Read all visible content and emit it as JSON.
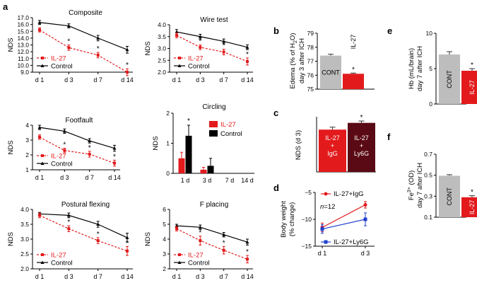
{
  "colors": {
    "red": "#e31a1c",
    "black": "#000000",
    "blue": "#1f3fcf",
    "gray": "#bdbdbd",
    "darkred": "#5a0a14"
  },
  "chart_data": [
    {
      "panel": "a",
      "type": "line",
      "title": "Composite",
      "ylabel": "NDS",
      "categories": [
        "d 1",
        "d 3",
        "d 7",
        "d 14"
      ],
      "ylim": [
        9,
        17
      ],
      "yticks": [
        "9.0",
        "10.0",
        "11.0",
        "12.0",
        "13.0",
        "14.0",
        "15.0",
        "16.0",
        "17.0"
      ],
      "legend": [
        "IL-27",
        "Control"
      ],
      "legend_pos": "bottom-left",
      "series": [
        {
          "name": "Control",
          "values": [
            16.3,
            15.8,
            14.0,
            12.3
          ],
          "err": [
            0.3,
            0.3,
            0.4,
            0.5
          ],
          "stars": []
        },
        {
          "name": "IL-27",
          "values": [
            15.2,
            12.6,
            11.5,
            9.0
          ],
          "err": [
            0.3,
            0.4,
            0.4,
            0.5
          ],
          "stars": [
            "",
            "*",
            "*",
            "*"
          ]
        }
      ]
    },
    {
      "type": "line",
      "title": "Wire test",
      "ylabel": "NDS",
      "categories": [
        "d 1",
        "d 3",
        "d 7",
        "d 14"
      ],
      "ylim": [
        2,
        4
      ],
      "yticks": [
        "2.0",
        "2.5",
        "3.0",
        "3.5",
        "4.0"
      ],
      "legend": [
        "IL-27",
        "Control"
      ],
      "legend_pos": "bottom-left",
      "series": [
        {
          "name": "Control",
          "values": [
            3.7,
            3.5,
            3.3,
            3.05
          ],
          "err": [
            0.1,
            0.1,
            0.1,
            0.1
          ],
          "stars": []
        },
        {
          "name": "IL-27",
          "values": [
            3.55,
            3.05,
            2.85,
            2.45
          ],
          "err": [
            0.1,
            0.1,
            0.12,
            0.15
          ],
          "stars": [
            "",
            "*",
            "*",
            "*"
          ]
        }
      ]
    },
    {
      "type": "line",
      "title": "Footfault",
      "ylabel": "NDS",
      "categories": [
        "d 1",
        "d 3",
        "d 7",
        "d 14"
      ],
      "ylim": [
        1,
        4
      ],
      "yticks": [
        "1",
        "2",
        "3",
        "4"
      ],
      "legend": [
        "IL-27",
        "Control"
      ],
      "legend_pos": "bottom-left",
      "series": [
        {
          "name": "Control",
          "values": [
            3.85,
            3.6,
            2.95,
            2.45
          ],
          "err": [
            0.15,
            0.15,
            0.15,
            0.2
          ],
          "stars": []
        },
        {
          "name": "IL-27",
          "values": [
            3.2,
            2.3,
            2.05,
            1.45
          ],
          "err": [
            0.15,
            0.15,
            0.2,
            0.2
          ],
          "stars": [
            "",
            "*",
            "*",
            "*"
          ]
        }
      ]
    },
    {
      "type": "bar",
      "title": "Circling",
      "ylabel": "NDS",
      "categories": [
        "1 d",
        "3 d",
        "7 d",
        "14 d"
      ],
      "ylim": [
        0,
        2
      ],
      "yticks": [
        "0",
        "1",
        "2"
      ],
      "legend": [
        "IL-27",
        "Control"
      ],
      "legend_pos": "top-right",
      "series": [
        {
          "name": "IL-27",
          "values": [
            0.5,
            0.12,
            0,
            0
          ],
          "err": [
            0.2,
            0.08,
            0,
            0
          ]
        },
        {
          "name": "Control",
          "values": [
            1.25,
            0.25,
            0,
            0
          ],
          "err": [
            0.35,
            0.25,
            0,
            0
          ]
        }
      ],
      "stars": [
        {
          "category": 0,
          "text": "*"
        }
      ]
    },
    {
      "type": "line",
      "title": "Postural flexing",
      "ylabel": "NDS",
      "categories": [
        "d 1",
        "d 3",
        "d 7",
        "d 14"
      ],
      "ylim": [
        2,
        4
      ],
      "yticks": [
        "2.0",
        "2.5",
        "3.0",
        "3.5",
        "4.0"
      ],
      "legend": [
        "IL-27",
        "Control"
      ],
      "legend_pos": "bottom-left",
      "series": [
        {
          "name": "Control",
          "values": [
            3.85,
            3.8,
            3.5,
            3.05
          ],
          "err": [
            0.05,
            0.08,
            0.1,
            0.15
          ],
          "stars": []
        },
        {
          "name": "IL-27",
          "values": [
            3.8,
            3.35,
            2.95,
            2.6
          ],
          "err": [
            0.08,
            0.1,
            0.1,
            0.15
          ],
          "stars": [
            "",
            "*",
            "*",
            "*"
          ]
        }
      ]
    },
    {
      "type": "line",
      "title": "F placing",
      "ylabel": "NDS",
      "categories": [
        "d 1",
        "d 3",
        "d 7",
        "d 14"
      ],
      "ylim": [
        2,
        6
      ],
      "yticks": [
        "2",
        "3",
        "4",
        "5",
        "6"
      ],
      "legend": [
        "IL-27",
        "Control"
      ],
      "legend_pos": "bottom-left",
      "series": [
        {
          "name": "Control",
          "values": [
            4.9,
            4.8,
            4.3,
            3.8
          ],
          "err": [
            0.1,
            0.15,
            0.15,
            0.2
          ],
          "stars": []
        },
        {
          "name": "IL-27",
          "values": [
            4.7,
            3.9,
            3.25,
            2.65
          ],
          "err": [
            0.15,
            0.3,
            0.25,
            0.25
          ],
          "stars": [
            "",
            "*",
            "*",
            "*"
          ]
        }
      ]
    },
    {
      "panel": "b",
      "type": "bar",
      "title": "",
      "ylabel": "Edema (% of H2O) day 3 after ICH",
      "ylabel_lines": [
        "Edema (% of H",
        "2",
        "O)",
        "day 3 after ICH"
      ],
      "categories": [
        "CONT",
        "IL-27"
      ],
      "values": [
        77.4,
        76.1
      ],
      "err": [
        0.1,
        0.05
      ],
      "ylim": [
        75,
        79
      ],
      "yticks": [
        "75",
        "76",
        "77",
        "78",
        "79"
      ],
      "stars": [
        "",
        "*"
      ]
    },
    {
      "panel": "c",
      "type": "bar",
      "title": "",
      "ylabel": "NDS (d 3)",
      "categories": [
        "IL-27 + IgG",
        "IL-27 + Ly6G"
      ],
      "category_lines": [
        [
          "IL-27",
          "+",
          "IgG"
        ],
        [
          "IL-27",
          "+",
          "Ly6G"
        ]
      ],
      "values": [
        6.9,
        8.0
      ],
      "err": [
        0.4,
        0.3
      ],
      "ylim": [
        0,
        9
      ],
      "yticks": [],
      "stars": [
        "",
        "*"
      ]
    },
    {
      "panel": "d",
      "type": "line",
      "title": "",
      "ylabel": "Body weight (% change)",
      "ylabel_lines": [
        "Body weight",
        "(% change)"
      ],
      "categories": [
        "d 1",
        "d 3"
      ],
      "ylim": [
        -15,
        -5
      ],
      "yticks": [
        "−15",
        "−10",
        "−5"
      ],
      "annotation_n": "n",
      "annotation_val": "=12",
      "series": [
        {
          "name": "IL-27+IgG",
          "values": [
            -11.5,
            -7.3
          ],
          "err": [
            0.8,
            0.6
          ]
        },
        {
          "name": "IL-27+Ly6G",
          "values": [
            -11.8,
            -10.0
          ],
          "err": [
            0.8,
            1.2
          ]
        }
      ]
    },
    {
      "panel": "e",
      "type": "bar",
      "title": "",
      "ylabel": "Hb (mL/brain) day 7 after ICH",
      "ylabel_lines": [
        "Hb (mL/brain)",
        "day 7 after ICH"
      ],
      "categories": [
        "CONT",
        "IL-27"
      ],
      "values": [
        7.0,
        4.7
      ],
      "err": [
        0.4,
        0.3
      ],
      "ylim": [
        0,
        10
      ],
      "yticks": [
        "0",
        "5",
        "10"
      ],
      "stars": [
        "",
        "*"
      ]
    },
    {
      "panel": "f",
      "type": "bar",
      "title": "",
      "ylabel": "Fe3+ (OD) day 7 after ICH",
      "ylabel_lines": [
        "Fe",
        "3+",
        " (OD)",
        "day 7 after ICH"
      ],
      "categories": [
        "CONT",
        "IL-27"
      ],
      "values": [
        0.495,
        0.29
      ],
      "err": [
        0.01,
        0.015
      ],
      "ylim": [
        0.1,
        0.7
      ],
      "yticks": [
        "0.1",
        "0.3",
        "0.5",
        "0.7"
      ],
      "stars": [
        "",
        "*"
      ]
    }
  ]
}
